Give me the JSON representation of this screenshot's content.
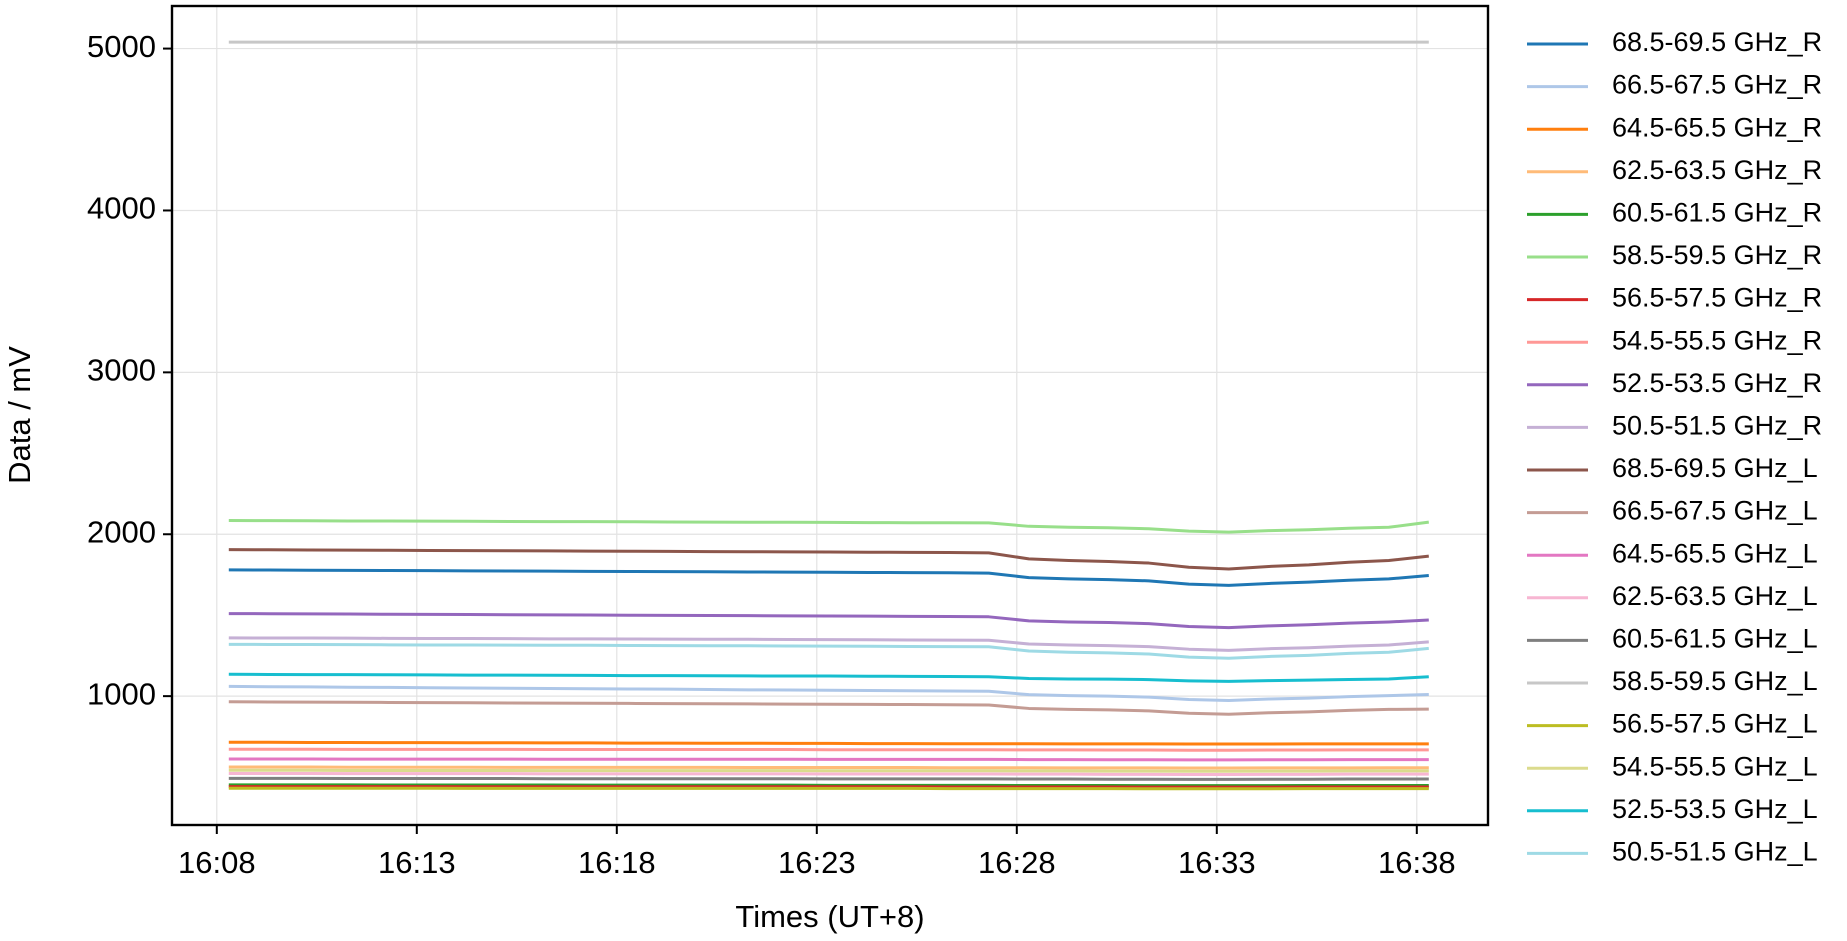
{
  "chart_data": {
    "type": "line",
    "xlabel": "Times (UT+8)",
    "ylabel": "Data / mV",
    "x": [
      968.3,
      969.3,
      970.3,
      971.3,
      972.3,
      973.3,
      974.3,
      975.3,
      976.3,
      977.3,
      978.3,
      979.3,
      980.3,
      981.3,
      982.3,
      983.3,
      984.3,
      985.3,
      986.3,
      987.3,
      988.3,
      989.3,
      990.3,
      991.3,
      992.3,
      993.3,
      994.3,
      995.3,
      996.3,
      997.3,
      998.3
    ],
    "xlim": [
      966.88,
      999.78
    ],
    "xticks": [
      {
        "value": 968,
        "label": "16:08"
      },
      {
        "value": 973,
        "label": "16:13"
      },
      {
        "value": 978,
        "label": "16:18"
      },
      {
        "value": 983,
        "label": "16:23"
      },
      {
        "value": 988,
        "label": "16:28"
      },
      {
        "value": 993,
        "label": "16:33"
      },
      {
        "value": 998,
        "label": "16:38"
      }
    ],
    "ylim": [
      204,
      5263
    ],
    "yticks": [
      1000,
      2000,
      3000,
      4000,
      5000
    ],
    "grid": true,
    "legend": "outside-right",
    "series": [
      {
        "name": "68.5-69.5 GHz_R",
        "color": "#1f77b4",
        "values": [
          1780,
          1779,
          1778,
          1777,
          1776,
          1775,
          1774,
          1773,
          1772,
          1771,
          1770,
          1769,
          1768,
          1767,
          1766,
          1765,
          1764,
          1763,
          1762,
          1760,
          1732,
          1724,
          1720,
          1712,
          1692,
          1684,
          1696,
          1704,
          1716,
          1724,
          1745
        ]
      },
      {
        "name": "66.5-67.5 GHz_R",
        "color": "#aec7e8",
        "values": [
          1060,
          1058,
          1057,
          1055,
          1054,
          1052,
          1050,
          1049,
          1047,
          1046,
          1044,
          1043,
          1041,
          1039,
          1038,
          1036,
          1035,
          1033,
          1032,
          1030,
          1009,
          1003,
          1000,
          994,
          979,
          973,
          982,
          988,
          997,
          1003,
          1010
        ]
      },
      {
        "name": "64.5-65.5 GHz_R",
        "color": "#ff7f0e",
        "values": [
          715,
          715,
          714,
          714,
          713,
          713,
          712,
          712,
          711,
          711,
          710,
          710,
          709,
          709,
          708,
          708,
          707,
          707,
          706,
          706,
          706,
          705,
          705,
          705,
          704,
          704,
          704,
          705,
          705,
          705,
          705
        ]
      },
      {
        "name": "62.5-63.5 GHz_R",
        "color": "#ffbb78",
        "values": [
          562,
          562,
          562,
          561,
          561,
          561,
          561,
          560,
          560,
          560,
          560,
          560,
          560,
          559,
          559,
          559,
          559,
          559,
          558,
          558,
          558,
          557,
          557,
          557,
          556,
          556,
          557,
          557,
          557,
          558,
          558
        ]
      },
      {
        "name": "60.5-61.5 GHz_R",
        "color": "#2ca02c",
        "values": [
          452,
          452,
          452,
          452,
          451,
          451,
          451,
          451,
          451,
          450,
          450,
          450,
          450,
          450,
          450,
          449,
          449,
          449,
          449,
          449,
          448,
          448,
          448,
          447,
          447,
          447,
          447,
          448,
          448,
          448,
          448
        ]
      },
      {
        "name": "58.5-59.5 GHz_R",
        "color": "#98df8a",
        "values": [
          2085,
          2084,
          2083,
          2082,
          2082,
          2081,
          2080,
          2079,
          2078,
          2078,
          2077,
          2076,
          2075,
          2074,
          2074,
          2073,
          2072,
          2071,
          2071,
          2070,
          2049,
          2043,
          2040,
          2034,
          2019,
          2013,
          2022,
          2028,
          2037,
          2043,
          2075
        ]
      },
      {
        "name": "56.5-57.5 GHz_R",
        "color": "#d62728",
        "values": [
          441,
          441,
          441,
          441,
          441,
          441,
          440,
          440,
          440,
          440,
          440,
          440,
          440,
          440,
          440,
          440,
          440,
          440,
          439,
          439,
          439,
          439,
          439,
          438,
          438,
          438,
          438,
          439,
          439,
          439,
          439
        ]
      },
      {
        "name": "54.5-55.5 GHz_R",
        "color": "#ff9896",
        "values": [
          672,
          672,
          672,
          671,
          671,
          671,
          671,
          671,
          670,
          670,
          670,
          670,
          670,
          670,
          670,
          669,
          669,
          669,
          669,
          669,
          668,
          668,
          667,
          667,
          666,
          666,
          667,
          667,
          668,
          668,
          668
        ]
      },
      {
        "name": "52.5-53.5 GHz_R",
        "color": "#9467bd",
        "values": [
          1510,
          1509,
          1508,
          1507,
          1506,
          1505,
          1504,
          1503,
          1502,
          1501,
          1500,
          1499,
          1498,
          1497,
          1496,
          1495,
          1494,
          1493,
          1492,
          1490,
          1465,
          1458,
          1455,
          1448,
          1430,
          1423,
          1434,
          1441,
          1451,
          1458,
          1470
        ]
      },
      {
        "name": "50.5-51.5 GHz_R",
        "color": "#c5b0d5",
        "values": [
          1360,
          1359,
          1359,
          1358,
          1357,
          1356,
          1356,
          1355,
          1354,
          1354,
          1353,
          1352,
          1351,
          1351,
          1350,
          1349,
          1348,
          1347,
          1346,
          1345,
          1322,
          1316,
          1312,
          1306,
          1290,
          1283,
          1293,
          1299,
          1309,
          1316,
          1335
        ]
      },
      {
        "name": "68.5-69.5 GHz_L",
        "color": "#8c564b",
        "values": [
          1905,
          1904,
          1903,
          1902,
          1901,
          1900,
          1899,
          1898,
          1897,
          1896,
          1895,
          1894,
          1893,
          1892,
          1891,
          1890,
          1889,
          1888,
          1887,
          1885,
          1848,
          1838,
          1832,
          1822,
          1796,
          1785,
          1801,
          1811,
          1827,
          1838,
          1865
        ]
      },
      {
        "name": "66.5-67.5 GHz_L",
        "color": "#c49c94",
        "values": [
          965,
          964,
          963,
          962,
          961,
          960,
          959,
          958,
          957,
          956,
          955,
          954,
          953,
          952,
          951,
          950,
          949,
          948,
          947,
          945,
          924,
          918,
          915,
          909,
          894,
          888,
          897,
          903,
          912,
          918,
          920
        ]
      },
      {
        "name": "64.5-65.5 GHz_L",
        "color": "#e377c2",
        "values": [
          612,
          612,
          612,
          611,
          611,
          611,
          611,
          611,
          610,
          610,
          610,
          610,
          610,
          610,
          610,
          609,
          609,
          609,
          609,
          609,
          608,
          608,
          607,
          607,
          606,
          606,
          607,
          607,
          608,
          608,
          608
        ]
      },
      {
        "name": "62.5-63.5 GHz_L",
        "color": "#f7b6d2",
        "values": [
          522,
          522,
          522,
          521,
          521,
          521,
          521,
          521,
          520,
          520,
          520,
          520,
          520,
          520,
          520,
          519,
          519,
          519,
          519,
          519,
          518,
          518,
          517,
          517,
          516,
          516,
          517,
          517,
          518,
          518,
          518
        ]
      },
      {
        "name": "60.5-61.5 GHz_L",
        "color": "#7f7f7f",
        "values": [
          492,
          492,
          492,
          491,
          491,
          491,
          491,
          491,
          490,
          490,
          490,
          490,
          490,
          490,
          490,
          489,
          489,
          489,
          489,
          489,
          488,
          488,
          487,
          487,
          486,
          486,
          487,
          487,
          488,
          488,
          488
        ]
      },
      {
        "name": "58.5-59.5 GHz_L",
        "color": "#c7c7c7",
        "values": [
          5040,
          5040,
          5040,
          5040,
          5040,
          5040,
          5040,
          5040,
          5040,
          5040,
          5040,
          5040,
          5040,
          5040,
          5040,
          5040,
          5040,
          5040,
          5040,
          5040,
          5040,
          5040,
          5040,
          5040,
          5040,
          5040,
          5040,
          5040,
          5040,
          5040,
          5040
        ]
      },
      {
        "name": "56.5-57.5 GHz_L",
        "color": "#bcbd22",
        "values": [
          431,
          431,
          431,
          431,
          431,
          431,
          430,
          430,
          430,
          430,
          430,
          430,
          430,
          430,
          430,
          430,
          430,
          430,
          429,
          429,
          429,
          429,
          429,
          428,
          428,
          428,
          428,
          429,
          429,
          429,
          429
        ]
      },
      {
        "name": "54.5-55.5 GHz_L",
        "color": "#dbdb8d",
        "values": [
          542,
          542,
          542,
          541,
          541,
          541,
          541,
          541,
          540,
          540,
          540,
          540,
          540,
          540,
          540,
          539,
          539,
          539,
          539,
          539,
          538,
          538,
          537,
          537,
          536,
          536,
          537,
          537,
          538,
          538,
          538
        ]
      },
      {
        "name": "52.5-53.5 GHz_L",
        "color": "#17becf",
        "values": [
          1135,
          1134,
          1133,
          1133,
          1132,
          1131,
          1130,
          1130,
          1129,
          1128,
          1127,
          1127,
          1126,
          1125,
          1124,
          1124,
          1123,
          1122,
          1121,
          1120,
          1109,
          1106,
          1105,
          1102,
          1094,
          1091,
          1096,
          1099,
          1103,
          1106,
          1120
        ]
      },
      {
        "name": "50.5-51.5 GHz_L",
        "color": "#9edae5",
        "values": [
          1320,
          1319,
          1319,
          1318,
          1317,
          1316,
          1316,
          1315,
          1314,
          1314,
          1313,
          1312,
          1311,
          1311,
          1310,
          1309,
          1308,
          1307,
          1306,
          1305,
          1279,
          1271,
          1267,
          1260,
          1241,
          1234,
          1245,
          1252,
          1264,
          1271,
          1295
        ]
      }
    ]
  }
}
